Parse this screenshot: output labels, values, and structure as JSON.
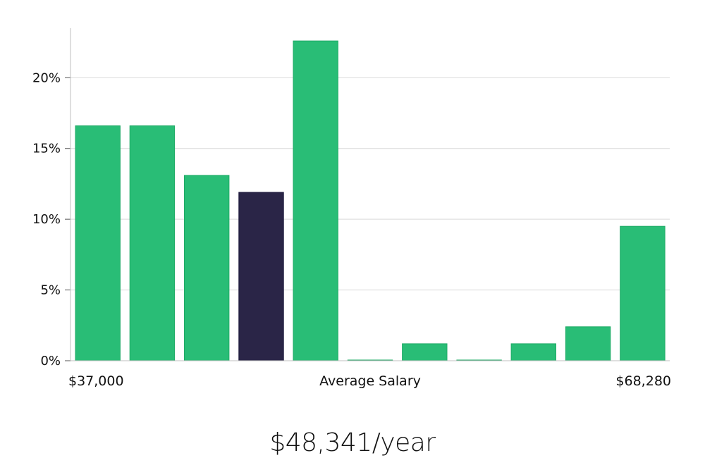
{
  "chart_data": {
    "type": "bar",
    "title": "",
    "xlabel": "Average Salary",
    "x_range_labels": [
      "$37,000",
      "$68,280"
    ],
    "ylabel": "",
    "ylim": [
      0,
      23.5
    ],
    "yticks": [
      0,
      5,
      10,
      15,
      20
    ],
    "ytick_labels": [
      "0%",
      "5%",
      "10%",
      "15%",
      "20%"
    ],
    "grid": true,
    "values": [
      16.6,
      16.6,
      13.1,
      11.9,
      22.6,
      0.05,
      1.2,
      0.05,
      1.2,
      2.4,
      9.5
    ],
    "highlight_index": 3,
    "colors": {
      "bar": "#29bd76",
      "highlight": "#2a2547",
      "grid": "#d9d9d9",
      "axis": "#bfbfbf"
    }
  },
  "summary": {
    "salary_text": "$48,341/year"
  }
}
